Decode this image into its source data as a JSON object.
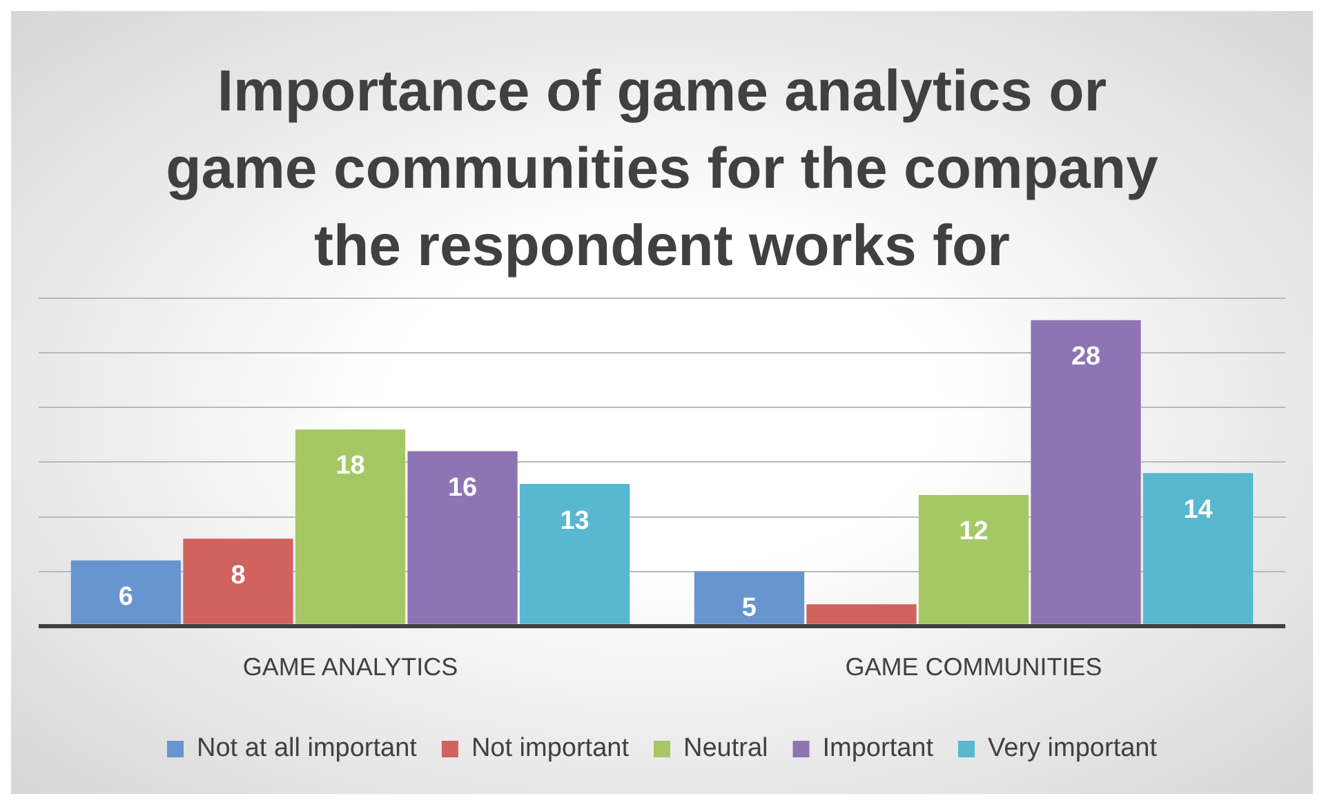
{
  "chart_data": {
    "type": "bar",
    "title": "Importance of game analytics or game communities for the company the respondent works for",
    "categories": [
      "GAME ANALYTICS",
      "GAME COMMUNITIES"
    ],
    "series": [
      {
        "name": "Not at all important",
        "color": "#6795cf",
        "values": [
          6,
          5
        ],
        "value_labels": [
          "6",
          "5"
        ]
      },
      {
        "name": "Not important",
        "color": "#d2625e",
        "values": [
          8,
          2
        ],
        "value_labels": [
          "8",
          null
        ]
      },
      {
        "name": "Neutral",
        "color": "#a5c865",
        "values": [
          18,
          12
        ],
        "value_labels": [
          "18",
          "12"
        ]
      },
      {
        "name": "Important",
        "color": "#8d74b2",
        "values": [
          16,
          28
        ],
        "value_labels": [
          "16",
          "28"
        ]
      },
      {
        "name": "Very important",
        "color": "#57b8cf",
        "values": [
          13,
          14
        ],
        "value_labels": [
          "13",
          "14"
        ]
      }
    ],
    "tick_labels": "x",
    "grid": "y",
    "legend": "bottom"
  }
}
